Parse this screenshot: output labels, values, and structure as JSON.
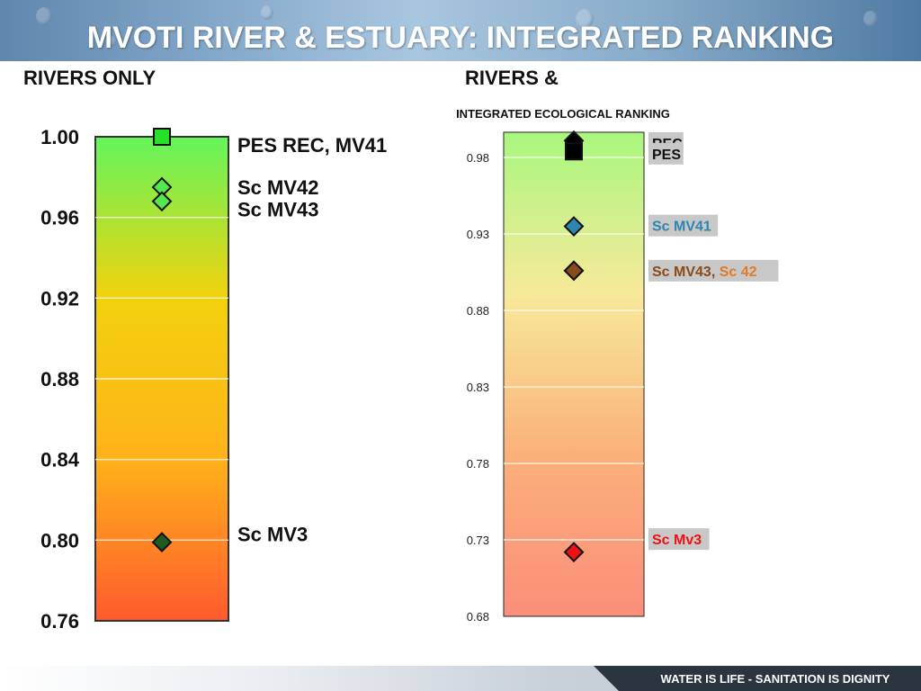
{
  "header": {
    "title": "MVOTI RIVER & ESTUARY: INTEGRATED RANKING"
  },
  "subheads": {
    "left": "RIVERS ONLY",
    "right": "RIVERS  &"
  },
  "footer": {
    "text": "WATER IS LIFE - SANITATION IS DIGNITY"
  },
  "chart_data": [
    {
      "type": "scatter",
      "title": "",
      "ylim": [
        0.76,
        1.0
      ],
      "yticks": [
        "1.00",
        "0.96",
        "0.92",
        "0.88",
        "0.84",
        "0.80",
        "0.76"
      ],
      "ytick_values": [
        1.0,
        0.96,
        0.92,
        0.88,
        0.84,
        0.8,
        0.76
      ],
      "background_gradient": [
        "#63f55c",
        "#f2d20d",
        "#ffb21a",
        "#ff5a2e"
      ],
      "points": [
        {
          "y": 1.0,
          "marker": "square",
          "color": "#29e029"
        },
        {
          "y": 0.975,
          "marker": "diamond",
          "color": "#55e84a"
        },
        {
          "y": 0.968,
          "marker": "diamond",
          "color": "#55e84a"
        },
        {
          "y": 0.799,
          "marker": "diamond",
          "color": "#1f5a1f"
        }
      ],
      "labels": [
        {
          "y": 0.996,
          "text": "PES REC, MV41"
        },
        {
          "y": 0.975,
          "text": "Sc MV42"
        },
        {
          "y": 0.964,
          "text": "Sc MV43"
        },
        {
          "y": 0.803,
          "text": "Sc MV3"
        }
      ]
    },
    {
      "type": "scatter",
      "title": "INTEGRATED ECOLOGICAL RANKING",
      "ylim": [
        0.68,
        0.9965
      ],
      "yticks": [
        "0.98",
        "0.93",
        "0.88",
        "0.83",
        "0.78",
        "0.73",
        "0.68"
      ],
      "ytick_values": [
        0.98,
        0.93,
        0.88,
        0.83,
        0.78,
        0.73,
        0.68
      ],
      "background_gradient": [
        "#a8f77f",
        "#f7e99a",
        "#fbb07a",
        "#fb8e7a"
      ],
      "points": [
        {
          "y": 0.991,
          "marker": "diamond",
          "color": "#000000"
        },
        {
          "y": 0.984,
          "marker": "square",
          "color": "#000000"
        },
        {
          "y": 0.935,
          "marker": "diamond",
          "color": "#2e86b0"
        },
        {
          "y": 0.906,
          "marker": "diamond",
          "color": "#e07a26"
        },
        {
          "y": 0.906,
          "marker": "diamond",
          "color": "#8a4a1a"
        },
        {
          "y": 0.722,
          "marker": "diamond",
          "color": "#ee1111"
        }
      ],
      "labels": [
        {
          "y": 0.9895,
          "parts": [
            {
              "text": "REC",
              "color": "#111111"
            }
          ]
        },
        {
          "y": 0.9825,
          "parts": [
            {
              "text": "PES",
              "color": "#111111"
            }
          ]
        },
        {
          "y": 0.9355,
          "parts": [
            {
              "text": "Sc MV41",
              "color": "#2e86b0"
            }
          ]
        },
        {
          "y": 0.906,
          "parts": [
            {
              "text": "Sc MV43, ",
              "color": "#8a4a1a"
            },
            {
              "text": "Sc 42",
              "color": "#e07a26"
            }
          ]
        },
        {
          "y": 0.7305,
          "parts": [
            {
              "text": "Sc Mv3",
              "color": "#ee1111"
            }
          ]
        }
      ]
    }
  ]
}
